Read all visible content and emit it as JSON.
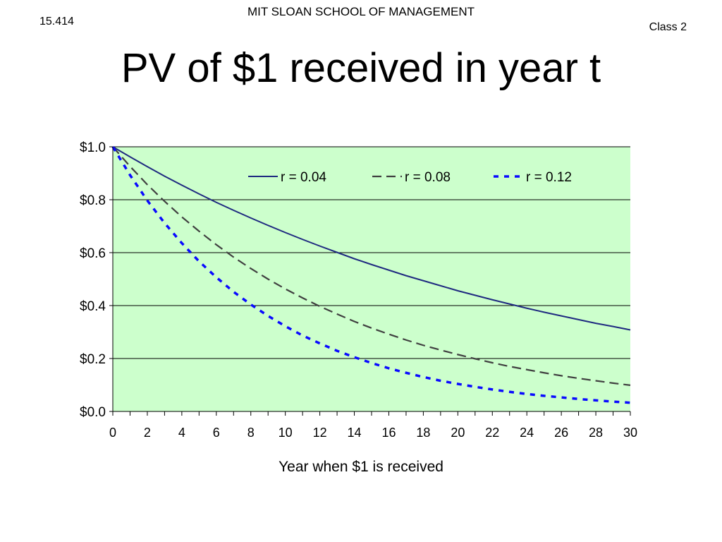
{
  "header": {
    "school": "MIT SLOAN SCHOOL OF MANAGEMENT",
    "course": "15.414",
    "class": "Class 2"
  },
  "slide": {
    "title": "PV of $1 received in year t"
  },
  "colors": {
    "plot_background": "#ccffcc",
    "gridline": "#000000",
    "series_r004": "#1f2a80",
    "series_r008": "#404040",
    "series_r012": "#0a0aff"
  },
  "chart_data": {
    "type": "line",
    "xlabel": "Year when $1 is received",
    "ylabel": "",
    "xlim": [
      0,
      30
    ],
    "ylim": [
      0,
      1
    ],
    "x_ticks": [
      "0",
      "2",
      "4",
      "6",
      "8",
      "10",
      "12",
      "14",
      "16",
      "18",
      "20",
      "22",
      "24",
      "26",
      "28",
      "30"
    ],
    "y_ticks": [
      "$0.0",
      "$0.2",
      "$0.4",
      "$0.6",
      "$0.8",
      "$1.0"
    ],
    "grid": "horizontal",
    "legend_position": "top-right",
    "x": [
      0,
      1,
      2,
      3,
      4,
      5,
      6,
      7,
      8,
      9,
      10,
      11,
      12,
      13,
      14,
      15,
      16,
      17,
      18,
      19,
      20,
      21,
      22,
      23,
      24,
      25,
      26,
      27,
      28,
      29,
      30
    ],
    "series": [
      {
        "name": "r = 0.04",
        "style": "solid",
        "values": [
          1.0,
          0.962,
          0.925,
          0.889,
          0.855,
          0.822,
          0.79,
          0.76,
          0.731,
          0.703,
          0.676,
          0.65,
          0.625,
          0.601,
          0.577,
          0.555,
          0.534,
          0.513,
          0.494,
          0.475,
          0.456,
          0.439,
          0.422,
          0.406,
          0.39,
          0.375,
          0.361,
          0.347,
          0.333,
          0.321,
          0.308
        ]
      },
      {
        "name": "r = 0.08",
        "style": "dashed",
        "values": [
          1.0,
          0.926,
          0.857,
          0.794,
          0.735,
          0.681,
          0.63,
          0.583,
          0.54,
          0.5,
          0.463,
          0.429,
          0.397,
          0.368,
          0.34,
          0.315,
          0.292,
          0.27,
          0.25,
          0.232,
          0.215,
          0.199,
          0.184,
          0.17,
          0.158,
          0.146,
          0.135,
          0.125,
          0.116,
          0.107,
          0.099
        ]
      },
      {
        "name": "r = 0.12",
        "style": "dotted",
        "values": [
          1.0,
          0.893,
          0.797,
          0.712,
          0.636,
          0.567,
          0.507,
          0.452,
          0.404,
          0.361,
          0.322,
          0.287,
          0.257,
          0.229,
          0.205,
          0.183,
          0.163,
          0.146,
          0.13,
          0.116,
          0.104,
          0.093,
          0.083,
          0.074,
          0.066,
          0.059,
          0.053,
          0.047,
          0.042,
          0.037,
          0.033
        ]
      }
    ]
  }
}
